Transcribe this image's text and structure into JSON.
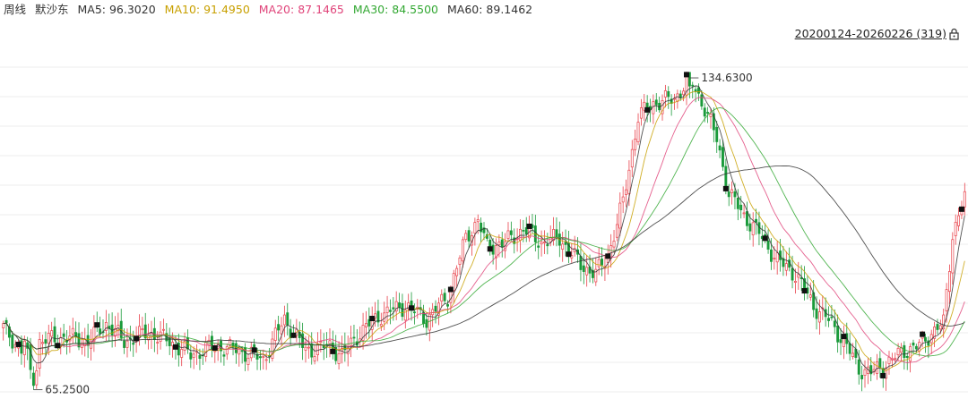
{
  "legend": {
    "period": "周线",
    "name": "默沙东",
    "ma5": {
      "label": "MA5: 96.3020",
      "color": "#333333"
    },
    "ma10": {
      "label": "MA10: 91.4950",
      "color": "#c8a000"
    },
    "ma20": {
      "label": "MA20: 87.1465",
      "color": "#e0447a"
    },
    "ma30": {
      "label": "MA30: 84.5500",
      "color": "#33a833"
    },
    "ma60": {
      "label": "MA60: 89.1462",
      "color": "#333333"
    }
  },
  "range_label": "20200124-20260226 (319)",
  "icons": {
    "lock": "lock-icon"
  },
  "colors": {
    "up": "#e8414a",
    "down": "#1a9a3a",
    "grid": "#eeeeee",
    "marker": "#111111"
  },
  "chart_data": {
    "type": "candlestick",
    "title": "",
    "xlabel": "",
    "ylabel": "",
    "grid": true,
    "ylim": [
      62,
      142
    ],
    "max_label": "134.6300",
    "min_label": "65.2500",
    "anchors": [
      [
        0,
        79
      ],
      [
        6,
        74
      ],
      [
        7,
        76
      ],
      [
        10,
        65.25
      ],
      [
        12,
        76
      ],
      [
        20,
        77
      ],
      [
        28,
        76
      ],
      [
        34,
        80
      ],
      [
        40,
        76
      ],
      [
        48,
        78
      ],
      [
        55,
        76
      ],
      [
        62,
        73
      ],
      [
        70,
        75
      ],
      [
        78,
        74
      ],
      [
        86,
        72
      ],
      [
        93,
        81
      ],
      [
        100,
        74
      ],
      [
        108,
        75
      ],
      [
        112,
        73
      ],
      [
        118,
        78
      ],
      [
        125,
        82
      ],
      [
        133,
        84
      ],
      [
        140,
        81
      ],
      [
        147,
        86
      ],
      [
        153,
        99
      ],
      [
        157,
        103
      ],
      [
        160,
        97
      ],
      [
        166,
        98
      ],
      [
        172,
        101
      ],
      [
        178,
        98
      ],
      [
        184,
        99
      ],
      [
        191,
        93
      ],
      [
        196,
        91
      ],
      [
        200,
        95
      ],
      [
        205,
        107
      ],
      [
        210,
        126
      ],
      [
        215,
        129
      ],
      [
        222,
        130
      ],
      [
        227,
        134.63
      ],
      [
        232,
        128
      ],
      [
        236,
        121
      ],
      [
        240,
        109
      ],
      [
        245,
        104
      ],
      [
        250,
        100
      ],
      [
        256,
        94
      ],
      [
        262,
        91
      ],
      [
        268,
        84
      ],
      [
        274,
        80
      ],
      [
        278,
        76
      ],
      [
        283,
        70
      ],
      [
        287,
        69
      ],
      [
        292,
        71
      ],
      [
        298,
        74
      ],
      [
        303,
        75
      ],
      [
        307,
        78
      ],
      [
        311,
        80
      ],
      [
        314,
        100
      ],
      [
        318,
        108
      ]
    ]
  }
}
